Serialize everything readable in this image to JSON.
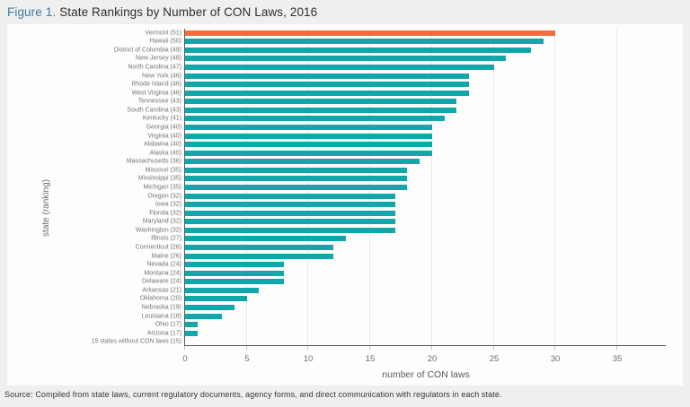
{
  "figure": {
    "label": "Figure 1.",
    "title": "State Rankings by Number of CON Laws, 2016"
  },
  "source": "Source: Compiled from state laws, current regulatory documents, agency forms, and direct communication with regulators in each state.",
  "colors": {
    "highlight_bar": "#f36c3e",
    "bar": "#10a7aa",
    "figure_label_blue": "#3d7ba6",
    "background": "#efefef",
    "card": "#fdfdfc"
  },
  "chart_data": {
    "type": "bar",
    "orientation": "horizontal",
    "title": "State Rankings by Number of CON Laws, 2016",
    "xlabel": "number of CON laws",
    "ylabel": "state (ranking)",
    "xlim": [
      0,
      39
    ],
    "xticks": [
      0,
      5,
      10,
      15,
      20,
      25,
      30,
      35
    ],
    "grid": true,
    "legend": "none",
    "rows": [
      {
        "label": "Vermont (51)",
        "value": 30,
        "highlight": true
      },
      {
        "label": "Hawaii (50)",
        "value": 29
      },
      {
        "label": "District of Columbia (49)",
        "value": 28
      },
      {
        "label": "New Jersey (48)",
        "value": 26
      },
      {
        "label": "North Carolina (47)",
        "value": 25
      },
      {
        "label": "New York (46)",
        "value": 23
      },
      {
        "label": "Rhode Island (46)",
        "value": 23
      },
      {
        "label": "West Virginia (46)",
        "value": 23
      },
      {
        "label": "Tennessee (43)",
        "value": 22
      },
      {
        "label": "South Carolina (43)",
        "value": 22
      },
      {
        "label": "Kentucky (41)",
        "value": 21
      },
      {
        "label": "Georgia (40)",
        "value": 20
      },
      {
        "label": "Virginia (40)",
        "value": 20
      },
      {
        "label": "Alabama (40)",
        "value": 20
      },
      {
        "label": "Alaska (40)",
        "value": 20
      },
      {
        "label": "Massachusetts (36)",
        "value": 19
      },
      {
        "label": "Missouri (35)",
        "value": 18
      },
      {
        "label": "Mississippi (35)",
        "value": 18
      },
      {
        "label": "Michigan (35)",
        "value": 18
      },
      {
        "label": "Oregon (32)",
        "value": 17
      },
      {
        "label": "Iowa (32)",
        "value": 17
      },
      {
        "label": "Florida (32)",
        "value": 17
      },
      {
        "label": "Maryland (32)",
        "value": 17
      },
      {
        "label": "Washington (32)",
        "value": 17
      },
      {
        "label": "Illinois (27)",
        "value": 13
      },
      {
        "label": "Connecticut (26)",
        "value": 12
      },
      {
        "label": "Maine (26)",
        "value": 12
      },
      {
        "label": "Nevada (24)",
        "value": 8
      },
      {
        "label": "Montana (24)",
        "value": 8
      },
      {
        "label": "Delaware (24)",
        "value": 8
      },
      {
        "label": "Arkansas (21)",
        "value": 6
      },
      {
        "label": "Oklahoma (20)",
        "value": 5
      },
      {
        "label": "Nebraska (19)",
        "value": 4
      },
      {
        "label": "Louisiana (18)",
        "value": 3
      },
      {
        "label": "Ohio (17)",
        "value": 1
      },
      {
        "label": "Arizona (17)",
        "value": 1
      },
      {
        "label": "15 states without CON laws (15)",
        "value": 0
      }
    ]
  }
}
